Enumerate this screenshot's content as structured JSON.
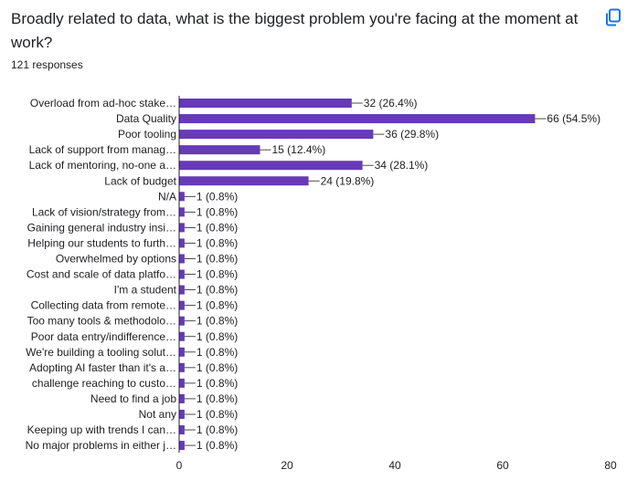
{
  "question": "Broadly related to data, what is the biggest problem you're facing at the moment at work?",
  "responses": "121 responses",
  "copy_icon": "copy-icon",
  "colors": {
    "bar": "#673ab7",
    "axis": "#202124",
    "leader": "#202124"
  },
  "chart_data": {
    "type": "bar",
    "orientation": "horizontal",
    "title": "",
    "xlabel": "",
    "ylabel": "",
    "xlim": [
      0,
      80
    ],
    "ticks": [
      0,
      20,
      40,
      60,
      80
    ],
    "grid": false,
    "categories": [
      "Overload from ad-hoc stake…",
      "Data Quality",
      "Poor tooling",
      "Lack of support from manag…",
      "Lack of mentoring, no-one a…",
      "Lack of budget",
      "N/A",
      "Lack of vision/strategy from…",
      "Gaining general industry insi…",
      "Helping our students to furth…",
      "Overwhelmed by options",
      "Cost and scale of data platfo…",
      "I'm a student",
      "Collecting data from remote…",
      "Too many tools & methodolo…",
      "Poor data entry/indifference…",
      "We're building a tooling solut…",
      "Adopting AI faster than it's a…",
      "challenge reaching to custo…",
      "Need to find a job",
      "Not any",
      "Keeping up with trends I can…",
      "No major problems in either j…"
    ],
    "values": [
      32,
      66,
      36,
      15,
      34,
      24,
      1,
      1,
      1,
      1,
      1,
      1,
      1,
      1,
      1,
      1,
      1,
      1,
      1,
      1,
      1,
      1,
      1
    ],
    "labels": [
      "32 (26.4%)",
      "66 (54.5%)",
      "36 (29.8%)",
      "15 (12.4%)",
      "34 (28.1%)",
      "24 (19.8%)",
      "1 (0.8%)",
      "1 (0.8%)",
      "1 (0.8%)",
      "1 (0.8%)",
      "1 (0.8%)",
      "1 (0.8%)",
      "1 (0.8%)",
      "1 (0.8%)",
      "1 (0.8%)",
      "1 (0.8%)",
      "1 (0.8%)",
      "1 (0.8%)",
      "1 (0.8%)",
      "1 (0.8%)",
      "1 (0.8%)",
      "1 (0.8%)",
      "1 (0.8%)"
    ]
  }
}
